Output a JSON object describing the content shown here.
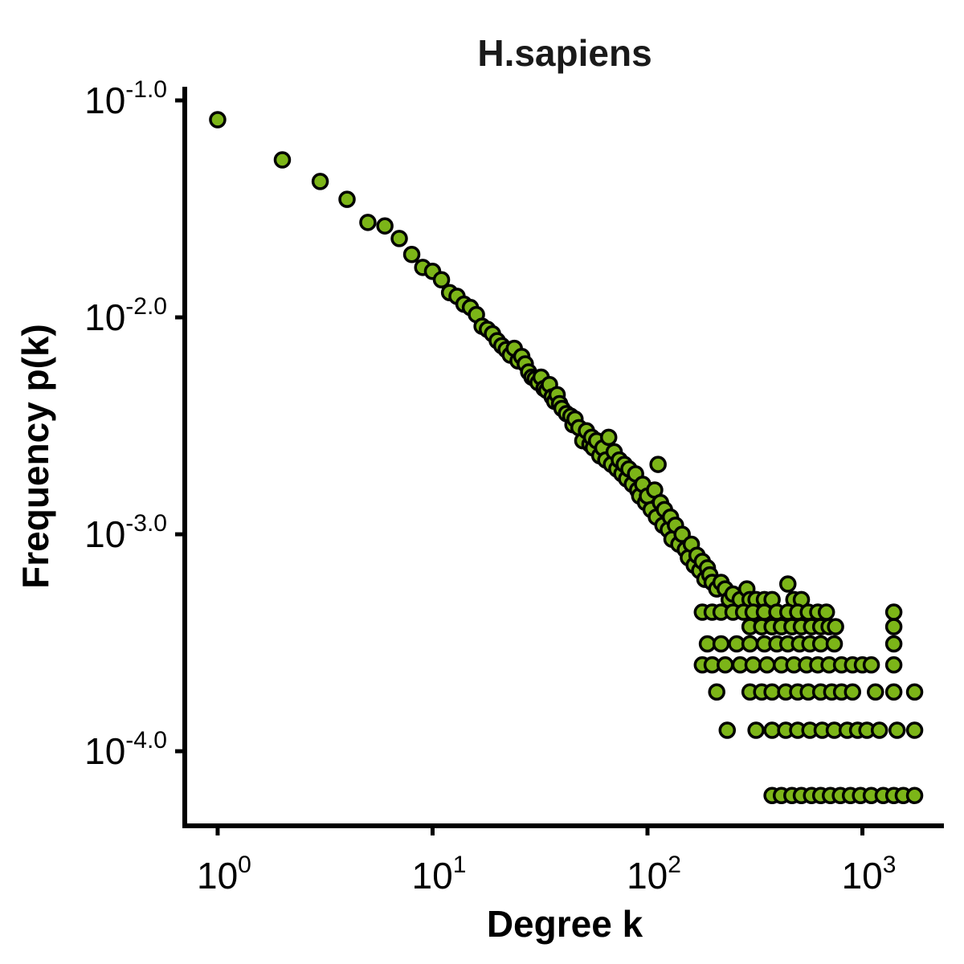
{
  "chart_data": {
    "type": "scatter",
    "title": "H.sapiens",
    "x_label": "Degree k",
    "y_label": "Frequency p(k)",
    "log_x": true,
    "log_y": true,
    "color": "#7cb518",
    "edge_color": "#000000",
    "xlim": [
      0.703,
      2395
    ],
    "ylim": [
      4.53e-05,
      0.1156
    ],
    "xticks": [
      {
        "value": 1,
        "label": "10",
        "exponent": "0"
      },
      {
        "value": 10,
        "label": "10",
        "exponent": "1"
      },
      {
        "value": 100,
        "label": "10",
        "exponent": "2"
      },
      {
        "value": 1000,
        "label": "10",
        "exponent": "3"
      }
    ],
    "yticks": [
      {
        "value": 0.1,
        "label": "10",
        "exponent": "-1.0"
      },
      {
        "value": 0.01,
        "label": "10",
        "exponent": "-2.0"
      },
      {
        "value": 0.001,
        "label": "10",
        "exponent": "-3.0"
      },
      {
        "value": 0.0001,
        "label": "10",
        "exponent": "-4.0"
      }
    ],
    "x": [
      1,
      2,
      3,
      4,
      5,
      6,
      7,
      8,
      9,
      10,
      11,
      12,
      13,
      14,
      15,
      16,
      17,
      18,
      19,
      20,
      21,
      22,
      23,
      24,
      25,
      26,
      27,
      28,
      29,
      30,
      31,
      32,
      33,
      34,
      35,
      36,
      37,
      38,
      39,
      40,
      42,
      44,
      45,
      46,
      48,
      50,
      52,
      54,
      55,
      56,
      58,
      60,
      62,
      64,
      66,
      68,
      70,
      72,
      74,
      76,
      78,
      80,
      82,
      85,
      88,
      90,
      92,
      95,
      98,
      100,
      104,
      108,
      110,
      112,
      115,
      118,
      120,
      125,
      128,
      130,
      135,
      140,
      145,
      150,
      155,
      160,
      165,
      170,
      175,
      180,
      185,
      190,
      195,
      200,
      210,
      220,
      230,
      240,
      250,
      270,
      290,
      300,
      320,
      350,
      380,
      450,
      480,
      520,
      180,
      200,
      220,
      250,
      280,
      310,
      350,
      400,
      450,
      500,
      560,
      620,
      680,
      1400,
      300,
      340,
      380,
      420,
      470,
      520,
      580,
      640,
      700,
      750,
      1400,
      190,
      220,
      260,
      300,
      350,
      400,
      450,
      510,
      570,
      640,
      740,
      1400,
      180,
      200,
      230,
      270,
      310,
      360,
      420,
      480,
      550,
      620,
      700,
      800,
      900,
      1000,
      1100,
      1400,
      210,
      300,
      340,
      380,
      440,
      500,
      560,
      640,
      720,
      800,
      900,
      1150,
      1400,
      1750,
      235,
      320,
      380,
      440,
      500,
      570,
      650,
      740,
      850,
      950,
      1050,
      1200,
      1450,
      1750,
      380,
      420,
      470,
      520,
      580,
      640,
      710,
      790,
      880,
      980,
      1100,
      1250,
      1400,
      1550,
      1750
    ],
    "values": [
      0.0815,
      0.0532,
      0.0423,
      0.035,
      0.0274,
      0.0264,
      0.0231,
      0.0195,
      0.017,
      0.0163,
      0.0149,
      0.013,
      0.0125,
      0.0115,
      0.0111,
      0.0103,
      0.0091,
      0.0088,
      0.0084,
      0.0078,
      0.0074,
      0.0071,
      0.0067,
      0.0072,
      0.0063,
      0.0066,
      0.0061,
      0.0056,
      0.0053,
      0.0052,
      0.005,
      0.0053,
      0.0047,
      0.0046,
      0.0049,
      0.0043,
      0.0041,
      0.0044,
      0.004,
      0.0038,
      0.0036,
      0.0035,
      0.0032,
      0.0034,
      0.0031,
      0.0027,
      0.003,
      0.0026,
      0.0028,
      0.0025,
      0.0027,
      0.0023,
      0.0025,
      0.0022,
      0.0028,
      0.0021,
      0.0024,
      0.002,
      0.0022,
      0.0019,
      0.0021,
      0.0018,
      0.002,
      0.0017,
      0.0019,
      0.0016,
      0.0015,
      0.0017,
      0.0014,
      0.0015,
      0.0013,
      0.0016,
      0.0012,
      0.0021,
      0.0014,
      0.0011,
      0.0013,
      0.00105,
      0.0012,
      0.00095,
      0.0011,
      0.0009,
      0.001,
      0.00085,
      0.00078,
      0.0009,
      0.00072,
      0.0008,
      0.00068,
      0.00075,
      0.00062,
      0.0007,
      0.00065,
      0.0006,
      0.00056,
      0.0006,
      0.00056,
      0.0005,
      0.00053,
      0.0005,
      0.00056,
      0.0005,
      0.0005,
      0.0005,
      0.0005,
      0.00059,
      0.0005,
      0.0005,
      0.0004375,
      0.0004375,
      0.0004375,
      0.0004375,
      0.0004375,
      0.0004375,
      0.0004375,
      0.0004375,
      0.0004375,
      0.0004375,
      0.0004375,
      0.0004375,
      0.0004375,
      0.0004375,
      0.000375,
      0.000375,
      0.000375,
      0.000375,
      0.000375,
      0.000375,
      0.000375,
      0.000375,
      0.000375,
      0.000375,
      0.000375,
      0.0003125,
      0.0003125,
      0.0003125,
      0.0003125,
      0.0003125,
      0.0003125,
      0.0003125,
      0.0003125,
      0.0003125,
      0.0003125,
      0.0003125,
      0.0003125,
      0.00025,
      0.00025,
      0.00025,
      0.00025,
      0.00025,
      0.00025,
      0.00025,
      0.00025,
      0.00025,
      0.00025,
      0.00025,
      0.00025,
      0.00025,
      0.00025,
      0.00025,
      0.00025,
      0.0001875,
      0.0001875,
      0.0001875,
      0.0001875,
      0.0001875,
      0.0001875,
      0.0001875,
      0.0001875,
      0.0001875,
      0.0001875,
      0.0001875,
      0.0001875,
      0.0001875,
      0.0001875,
      0.000125,
      0.000125,
      0.000125,
      0.000125,
      0.000125,
      0.000125,
      0.000125,
      0.000125,
      0.000125,
      0.000125,
      0.000125,
      0.000125,
      0.000125,
      0.000125,
      6.25e-05,
      6.25e-05,
      6.25e-05,
      6.25e-05,
      6.25e-05,
      6.25e-05,
      6.25e-05,
      6.25e-05,
      6.25e-05,
      6.25e-05,
      6.25e-05,
      6.25e-05,
      6.25e-05,
      6.25e-05,
      6.25e-05
    ]
  }
}
